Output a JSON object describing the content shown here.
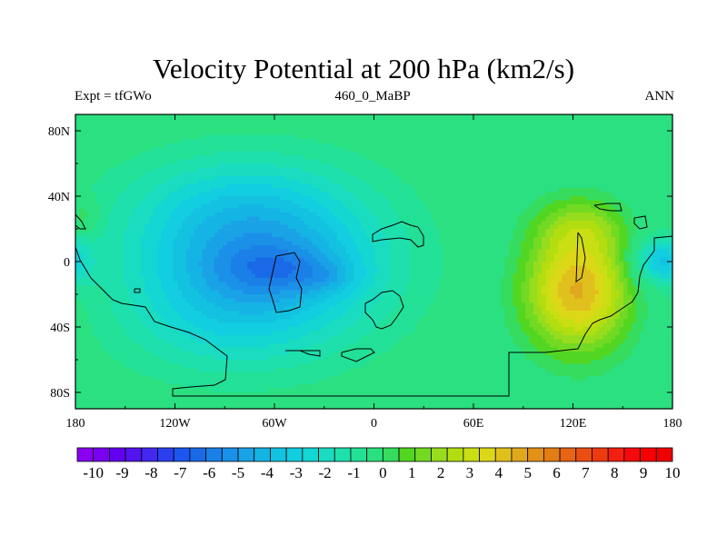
{
  "header": {
    "title": "Velocity Potential at 200 hPa (km2/s)",
    "left": "Expt = tfGWo",
    "center": "460_0_MaBP",
    "right": "ANN"
  },
  "chart_data": {
    "type": "heatmap",
    "title": "Velocity Potential at 200 hPa (km2/s)",
    "subtitle_left": "Expt = tfGWo",
    "subtitle_center": "460_0_MaBP",
    "subtitle_right": "ANN",
    "x_range": [
      -180,
      180
    ],
    "y_range": [
      -90,
      90
    ],
    "x_ticks": [
      {
        "value": -180,
        "label": "180"
      },
      {
        "value": -120,
        "label": "120W"
      },
      {
        "value": -60,
        "label": "60W"
      },
      {
        "value": 0,
        "label": "0"
      },
      {
        "value": 60,
        "label": "60E"
      },
      {
        "value": 120,
        "label": "120E"
      },
      {
        "value": 180,
        "label": "180"
      }
    ],
    "y_ticks": [
      {
        "value": 80,
        "label": "80N"
      },
      {
        "value": 40,
        "label": "40N"
      },
      {
        "value": 0,
        "label": "0"
      },
      {
        "value": -40,
        "label": "40S"
      },
      {
        "value": -80,
        "label": "80S"
      }
    ],
    "field": {
      "background": 0.5,
      "blobs": [
        {
          "lon": -70,
          "lat": 0,
          "sx": 75,
          "sy": 50,
          "amp": -4.6
        },
        {
          "lon": -55,
          "lat": -5,
          "sx": 35,
          "sy": 14,
          "amp": -1.2
        },
        {
          "lon": -25,
          "lat": -10,
          "sx": 18,
          "sy": 9,
          "amp": -0.6
        },
        {
          "lon": -90,
          "lat": 40,
          "sx": 70,
          "sy": 28,
          "amp": -0.7
        },
        {
          "lon": -100,
          "lat": -45,
          "sx": 60,
          "sy": 30,
          "amp": -0.6
        },
        {
          "lon": -175,
          "lat": 28,
          "sx": 8,
          "sy": 10,
          "amp": 1.2
        },
        {
          "lon": 123,
          "lat": -18,
          "sx": 32,
          "sy": 36,
          "amp": 4.6
        },
        {
          "lon": 125,
          "lat": 22,
          "sx": 28,
          "sy": 18,
          "amp": 1.6
        },
        {
          "lon": 172,
          "lat": 0,
          "sx": 16,
          "sy": 14,
          "amp": -3.0
        }
      ]
    },
    "colorbar": {
      "labels": [
        "-10",
        "-9",
        "-8",
        "-7",
        "-6",
        "-5",
        "-4",
        "-3",
        "-2",
        "-1",
        "0",
        "1",
        "2",
        "3",
        "4",
        "5",
        "6",
        "7",
        "8",
        "9",
        "10"
      ],
      "colors": [
        "#8a00f0",
        "#7a00f0",
        "#6400f0",
        "#5214f0",
        "#4228f0",
        "#2a40f0",
        "#1c56ee",
        "#1a6ae8",
        "#1a80e8",
        "#1a90e8",
        "#1aa2e6",
        "#14b4e4",
        "#12c2e0",
        "#12cee0",
        "#14d6d2",
        "#1adcc0",
        "#1ee0ac",
        "#22e096",
        "#2ae080",
        "#36dc5e",
        "#52d622",
        "#72da22",
        "#98dc1e",
        "#b2de10",
        "#cade14",
        "#dcd818",
        "#e0c01c",
        "#e0a81c",
        "#e29218",
        "#e27c14",
        "#e66414",
        "#ea4e12",
        "#ee3a10",
        "#f22010",
        "#f40a0a",
        "#f70000",
        "#ee0000"
      ]
    },
    "land_outline": "black contour of paleo-continents",
    "contour_interval": 0.5,
    "units": "km2/s"
  }
}
